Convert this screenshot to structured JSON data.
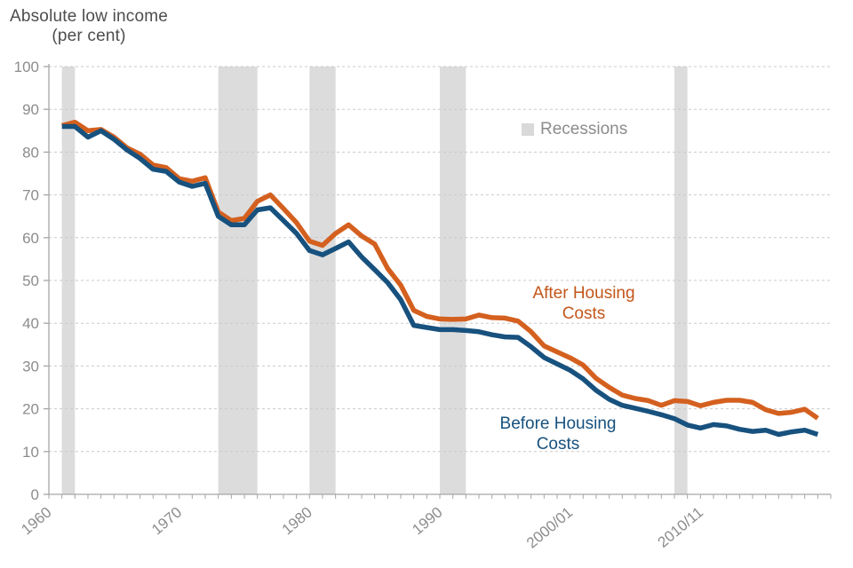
{
  "title": {
    "line1": "Absolute low income",
    "line2": "(per cent)"
  },
  "legend": {
    "label": "Recessions",
    "swatch_color": "#d9d9d9"
  },
  "annotations": {
    "ahc": {
      "line1": "After Housing",
      "line2": "Costs"
    },
    "bhc": {
      "line1": "Before Housing",
      "line2": "Costs"
    }
  },
  "colors": {
    "ahc_line": "#d4601f",
    "bhc_line": "#17517e",
    "recession_band": "#dcdcdc",
    "gridline": "#c9c9c9",
    "axis": "#a6a6a6",
    "tick_label": "#8c8c8c"
  },
  "chart_data": {
    "type": "line",
    "title": "Absolute low income (per cent)",
    "xlabel": "",
    "ylabel": "per cent",
    "xlim": [
      1960,
      2020
    ],
    "ylim": [
      0,
      100
    ],
    "grid": "horizontal-dashed",
    "y_ticks": [
      0,
      10,
      20,
      30,
      40,
      50,
      60,
      70,
      80,
      90,
      100
    ],
    "x_tick_labels": [
      {
        "year": 1960,
        "label": "1960"
      },
      {
        "year": 1970,
        "label": "1970"
      },
      {
        "year": 1980,
        "label": "1980"
      },
      {
        "year": 1990,
        "label": "1990"
      },
      {
        "year": 2000,
        "label": "2000/01"
      },
      {
        "year": 2010,
        "label": "2010/11"
      }
    ],
    "recessions": [
      [
        1961,
        1962
      ],
      [
        1973,
        1976
      ],
      [
        1980,
        1982
      ],
      [
        1990,
        1992
      ],
      [
        2008,
        2009
      ]
    ],
    "x": [
      1961,
      1962,
      1963,
      1964,
      1965,
      1966,
      1967,
      1968,
      1969,
      1970,
      1971,
      1972,
      1973,
      1974,
      1975,
      1976,
      1977,
      1978,
      1979,
      1980,
      1981,
      1982,
      1983,
      1984,
      1985,
      1986,
      1987,
      1988,
      1989,
      1990,
      1991,
      1992,
      1993,
      1994,
      1995,
      1996,
      1997,
      1998,
      1999,
      2000,
      2001,
      2002,
      2003,
      2004,
      2005,
      2006,
      2007,
      2008,
      2009,
      2010,
      2011,
      2012,
      2013,
      2014,
      2015,
      2016,
      2017,
      2018,
      2019
    ],
    "series": [
      {
        "name": "After Housing Costs",
        "color": "#d4601f",
        "values": [
          86.2,
          87,
          85,
          85.3,
          83.5,
          81,
          79.5,
          77,
          76.4,
          73.8,
          73.2,
          74,
          66,
          64,
          64.5,
          68.5,
          70,
          66.8,
          63.5,
          59.2,
          58.2,
          61,
          63,
          60.4,
          58.5,
          52.8,
          48.9,
          43,
          41.6,
          41,
          40.9,
          41,
          41.9,
          41.3,
          41.2,
          40.5,
          38,
          34.7,
          33.3,
          31.9,
          30.2,
          27.1,
          25,
          23.2,
          22.4,
          21.9,
          20.8,
          21.9,
          21.7,
          20.7,
          21.5,
          22,
          22,
          21.5,
          19.8,
          18.9,
          19.2,
          19.9,
          17.8
        ]
      },
      {
        "name": "Before Housing Costs",
        "color": "#17517e",
        "values": [
          86,
          86,
          83.5,
          85,
          83,
          80.5,
          78.5,
          76,
          75.5,
          73,
          72,
          72.7,
          65,
          63,
          63,
          66.5,
          67,
          64,
          61,
          57,
          56,
          57.5,
          59,
          55.5,
          52.5,
          49.5,
          45.5,
          39.5,
          39,
          38.5,
          38.5,
          38.3,
          38,
          37.3,
          36.8,
          36.7,
          34.5,
          32,
          30.5,
          29,
          27,
          24.3,
          22.2,
          20.8,
          20.1,
          19.4,
          18.6,
          17.7,
          16.2,
          15.5,
          16.3,
          16,
          15.2,
          14.7,
          15,
          14,
          14.6,
          15,
          14
        ]
      }
    ]
  }
}
